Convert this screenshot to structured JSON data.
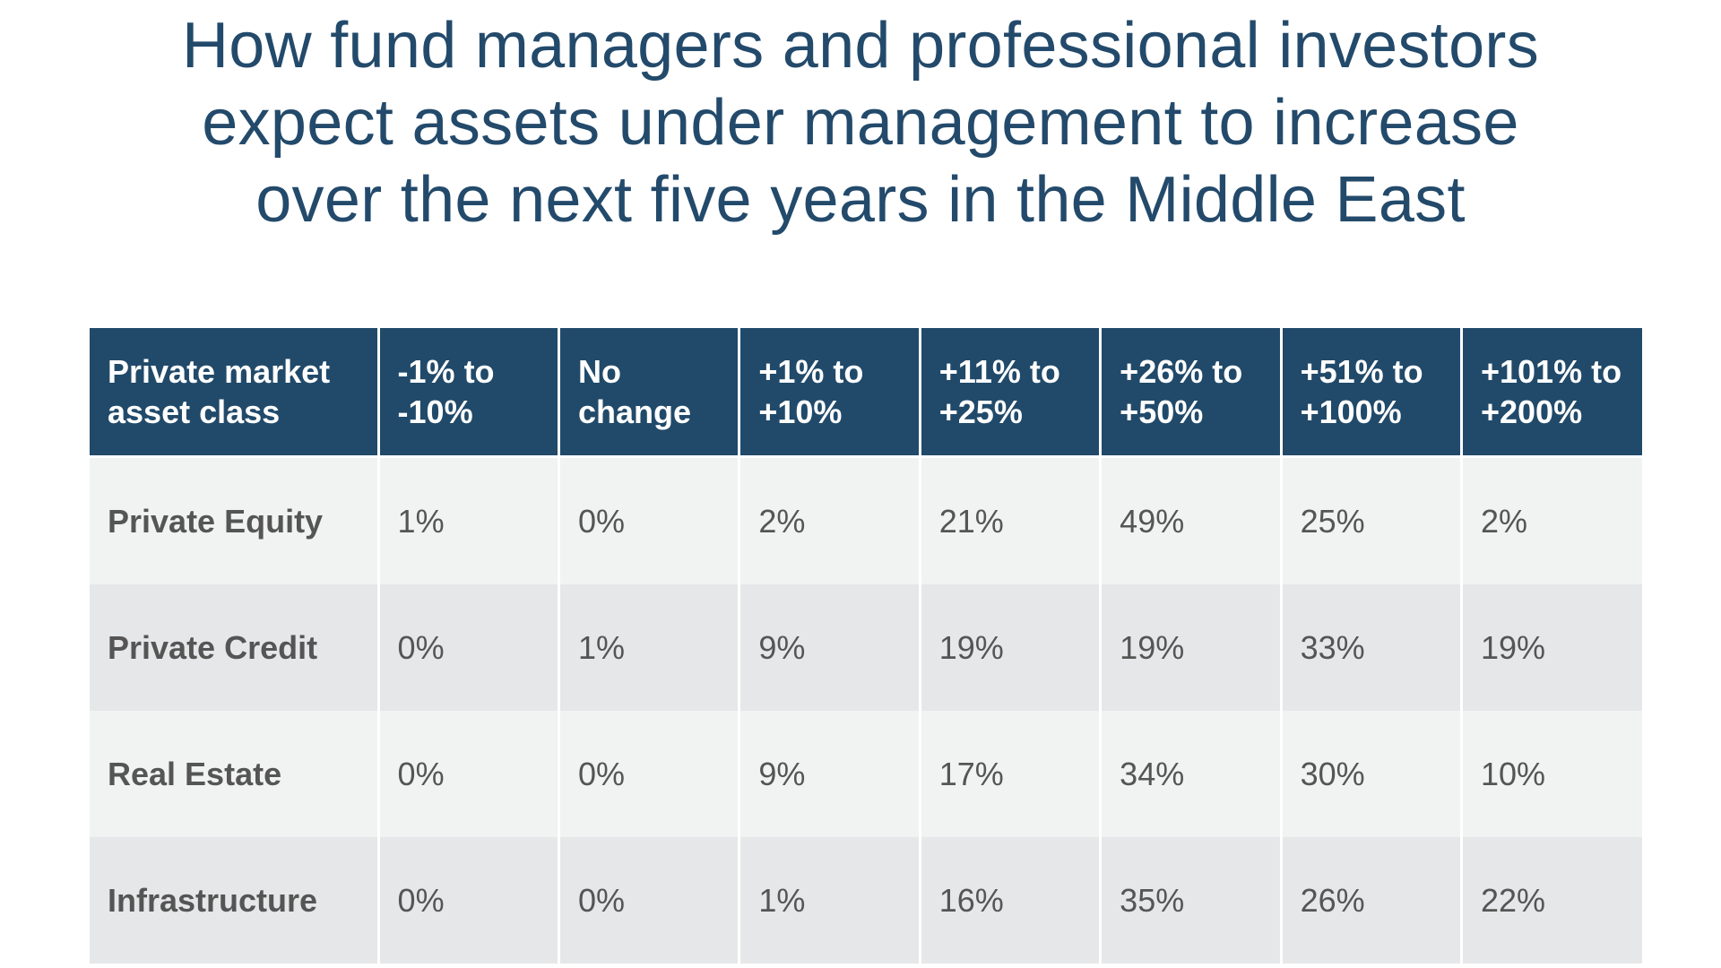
{
  "chart_data": {
    "type": "table",
    "title": [
      "How fund managers and professional investors",
      "expect assets under management to increase",
      "over the next five years in the Middle East"
    ],
    "header": [
      [
        "Private market",
        "asset class"
      ],
      [
        "-1% to",
        "-10%"
      ],
      [
        "No",
        "change"
      ],
      [
        "+1% to",
        "+10%"
      ],
      [
        "+11% to",
        "+25%"
      ],
      [
        "+26% to",
        "+50%"
      ],
      [
        "+51% to",
        "+100%"
      ],
      [
        "+101% to",
        "+200%"
      ]
    ],
    "rows": [
      [
        "Private Equity",
        "1%",
        "0%",
        "2%",
        "21%",
        "49%",
        "25%",
        "2%"
      ],
      [
        "Private Credit",
        "0%",
        "1%",
        "9%",
        "19%",
        "19%",
        "33%",
        "19%"
      ],
      [
        "Real Estate",
        "0%",
        "0%",
        "9%",
        "17%",
        "34%",
        "30%",
        "10%"
      ],
      [
        "Infrastructure",
        "0%",
        "0%",
        "1%",
        "16%",
        "35%",
        "26%",
        "22%"
      ]
    ],
    "colors": {
      "title": "#234a6b",
      "header_bg": "#214a6a",
      "header_text": "#ffffff",
      "row_light": "#f1f2f2",
      "row_dark": "#e6e7e8",
      "cell_text": "#555555"
    }
  }
}
